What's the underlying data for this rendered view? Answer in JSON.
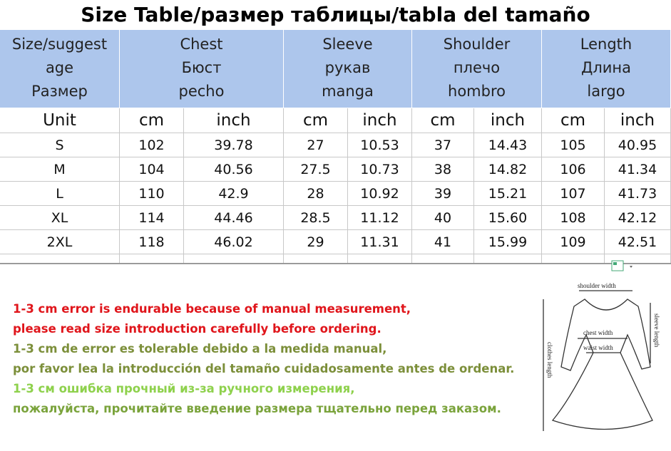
{
  "title": "Size Table/размер таблицы/tabla del tamaño",
  "header": {
    "first": [
      "Size/suggest",
      "age",
      "Размер"
    ],
    "groups": [
      {
        "lines": [
          "Chest",
          "Бюст",
          "pecho"
        ]
      },
      {
        "lines": [
          "Sleeve",
          "рукав",
          "manga"
        ]
      },
      {
        "lines": [
          "Shoulder",
          "плечо",
          "hombro"
        ]
      },
      {
        "lines": [
          "Length",
          "Длина",
          "largo"
        ]
      }
    ]
  },
  "units": [
    "Unit",
    "cm",
    "inch",
    "cm",
    "inch",
    "cm",
    "inch",
    "cm",
    "inch"
  ],
  "table": {
    "rows": [
      [
        "S",
        "102",
        "39.78",
        "27",
        "10.53",
        "37",
        "14.43",
        "105",
        "40.95"
      ],
      [
        "M",
        "104",
        "40.56",
        "27.5",
        "10.73",
        "38",
        "14.82",
        "106",
        "41.34"
      ],
      [
        "L",
        "110",
        "42.9",
        "28",
        "10.92",
        "39",
        "15.21",
        "107",
        "41.73"
      ],
      [
        "XL",
        "114",
        "44.46",
        "28.5",
        "11.12",
        "40",
        "15.60",
        "108",
        "42.12"
      ],
      [
        "2XL",
        "118",
        "46.02",
        "29",
        "11.31",
        "41",
        "15.99",
        "109",
        "42.51"
      ]
    ]
  },
  "notes": [
    "1-3 cm error is endurable because of manual measurement,",
    "please read size introduction carefully before ordering.",
    "1-3 cm de error es tolerable debido a la medida manual,",
    "por favor lea la introducción del tamaño cuidadosamente antes de ordenar.",
    "1-3 см ошибка прочный из-за ручного измерения,",
    "пожалуйста, прочитайте введение размера тщательно перед заказом."
  ],
  "diagram": {
    "labels": [
      "shoulder width",
      "sleeve length",
      "chest width",
      "waist width",
      "clothes length"
    ]
  }
}
